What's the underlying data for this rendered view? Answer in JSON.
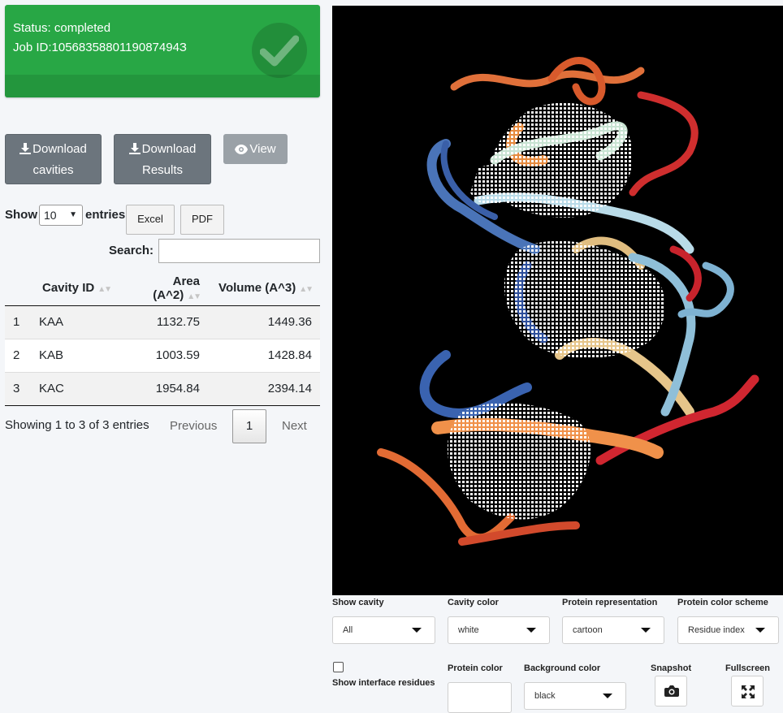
{
  "status": {
    "status_line": "Status: completed",
    "job_line": "Job ID:1056835880119087494З",
    "color": "#28a745"
  },
  "buttons": {
    "download_cavities": [
      "Download",
      "cavities"
    ],
    "download_results": [
      "Download",
      "Results"
    ],
    "view": "View"
  },
  "table_controls": {
    "show_label": "Show",
    "entries_value": "10",
    "entries_label": "entries",
    "excel": "Excel",
    "pdf": "PDF",
    "search_label": "Search:"
  },
  "table": {
    "headers": [
      "",
      "Cavity ID",
      "Area (A^2)",
      "Volume (A^3)"
    ],
    "rows": [
      [
        "1",
        "KAA",
        "1132.75",
        "1449.36"
      ],
      [
        "2",
        "KAB",
        "1003.59",
        "1428.84"
      ],
      [
        "3",
        "KAC",
        "1954.84",
        "2394.14"
      ]
    ]
  },
  "pagination": {
    "info": "Showing 1 to 3 of 3 entries",
    "previous": "Previous",
    "page": "1",
    "next": "Next"
  },
  "controls": {
    "show_cavity": {
      "label": "Show cavity",
      "value": "All"
    },
    "cavity_color": {
      "label": "Cavity color",
      "value": "white"
    },
    "protein_representation": {
      "label": "Protein representation",
      "value": "cartoon"
    },
    "protein_color_scheme": {
      "label": "Protein color scheme",
      "value": "Residue index"
    },
    "show_interface_residues": {
      "label": "Show interface residues"
    },
    "protein_color": {
      "label": "Protein color"
    },
    "background_color": {
      "label": "Background color",
      "value": "black"
    },
    "snapshot": {
      "label": "Snapshot",
      "icon": "camera-icon"
    },
    "fullscreen": {
      "label": "Fullscreen",
      "icon": "expand-icon"
    }
  }
}
